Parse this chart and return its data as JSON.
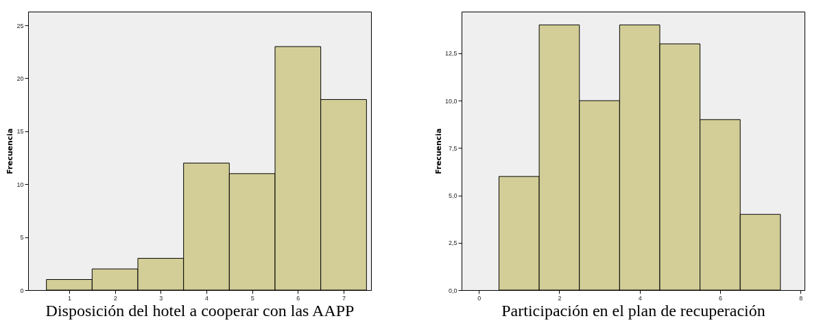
{
  "chart_data": [
    {
      "type": "histogram",
      "xlabel": "Disposición del hotel a cooperar con las AAPP",
      "ylabel": "Frecuencia",
      "bins": [
        0.5,
        1.5,
        2.5,
        3.5,
        4.5,
        5.5,
        6.5,
        7.5
      ],
      "values": [
        1,
        2,
        3,
        12,
        11,
        23,
        18
      ],
      "color": "#d3ce97",
      "xlim": [
        0.1,
        7.6
      ],
      "xticks": [
        1,
        2,
        3,
        4,
        5,
        6,
        7
      ],
      "ylim": [
        0,
        26.3
      ],
      "yticks": [
        0,
        5,
        10,
        15,
        20,
        25
      ],
      "grid": false
    },
    {
      "type": "histogram",
      "xlabel": "Participación en el plan de recuperación",
      "ylabel": "Frecuencia",
      "bins": [
        0.5,
        1.5,
        2.5,
        3.5,
        4.5,
        5.5,
        6.5,
        7.5
      ],
      "values": [
        6,
        14,
        10,
        14,
        13,
        9,
        4
      ],
      "color": "#d3ce97",
      "xlim": [
        -0.43,
        8.1
      ],
      "xticks": [
        0,
        2,
        4,
        6,
        8
      ],
      "ylim": [
        0,
        14.7
      ],
      "yticks": [
        {
          "value": 0,
          "label": "0,0"
        },
        {
          "value": 2.5,
          "label": "2,5"
        },
        {
          "value": 5,
          "label": "5,0"
        },
        {
          "value": 7.5,
          "label": "7,5"
        },
        {
          "value": 10,
          "label": "10,0"
        },
        {
          "value": 12.5,
          "label": "12,5"
        }
      ],
      "grid": false
    }
  ]
}
